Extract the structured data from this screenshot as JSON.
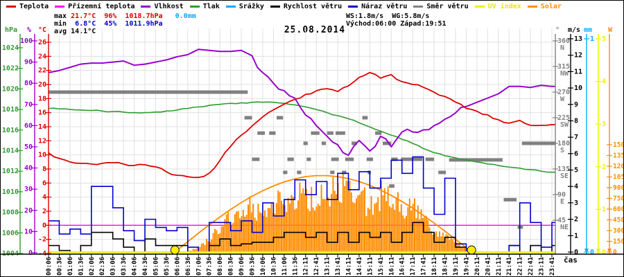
{
  "window": {
    "title": "25.08.2014"
  },
  "legend": {
    "items": [
      {
        "label": "Teplota",
        "color": "#dd0000",
        "label_color": "#000000"
      },
      {
        "label": "Přízemní teplota",
        "color": "#ff00ff",
        "label_color": "#000000"
      },
      {
        "label": "Vlhkost",
        "color": "#9900cc",
        "label_color": "#000000"
      },
      {
        "label": "Tlak",
        "color": "#2e9b2e",
        "label_color": "#000000"
      },
      {
        "label": "Srážky",
        "color": "#00aaff",
        "label_color": "#000000"
      },
      {
        "label": "Rychlost větru",
        "color": "#000000",
        "label_color": "#000000"
      },
      {
        "label": "Náraz větru",
        "color": "#0000cc",
        "label_color": "#000000"
      },
      {
        "label": "Směr větru",
        "color": "#808080",
        "label_color": "#000000"
      },
      {
        "label": "UV index",
        "color": "#f0f000",
        "label_color": "#e8e800"
      },
      {
        "label": "Solar",
        "color": "#ff8c00",
        "label_color": "#ff8c00"
      }
    ]
  },
  "stats": {
    "left_rows": [
      [
        {
          "text": "max ",
          "color": "#000000"
        },
        {
          "text": "21.7°C",
          "color": "#dd0000"
        },
        {
          "text": "  ",
          "color": "#000000"
        },
        {
          "text": "96%",
          "color": "#dd0000"
        },
        {
          "text": "  ",
          "color": "#000000"
        },
        {
          "text": "1018.7hPa",
          "color": "#dd0000"
        },
        {
          "text": "   ",
          "color": "#000000"
        },
        {
          "text": "0.0mm",
          "color": "#00aaff"
        }
      ],
      [
        {
          "text": "min ",
          "color": "#000000"
        },
        {
          "text": " 6.8°C",
          "color": "#0000cc"
        },
        {
          "text": "  ",
          "color": "#000000"
        },
        {
          "text": "45%",
          "color": "#0000cc"
        },
        {
          "text": "  ",
          "color": "#000000"
        },
        {
          "text": "1011.9hPa",
          "color": "#0000cc"
        }
      ],
      [
        {
          "text": "avg ",
          "color": "#000000"
        },
        {
          "text": "14.1°C",
          "color": "#000000"
        }
      ]
    ],
    "right_rows": [
      [
        {
          "text": "WS:1.8m/s  WG:5.8m/s",
          "color": "#000000"
        }
      ],
      [
        {
          "text": "Východ:06:00 Západ:19:51",
          "color": "#000000"
        }
      ]
    ]
  },
  "sun": {
    "sunrise": "06:00",
    "sunset": "19:51"
  },
  "axes": {
    "temp": {
      "unit": "°C",
      "color": "#dd0000",
      "min": -4,
      "max": 26,
      "ticks": [
        26,
        24,
        22,
        20,
        18,
        16,
        14,
        12,
        10,
        8,
        6,
        4,
        2,
        0,
        -2,
        -4
      ]
    },
    "humidity": {
      "unit": "%",
      "color": "#9900cc",
      "min": 0,
      "max": 100,
      "ticks": [
        100,
        90,
        80,
        70,
        60,
        50,
        40,
        30,
        20,
        10,
        0
      ]
    },
    "pressure": {
      "unit": "hPa",
      "color": "#2e9b2e",
      "min": 1004,
      "max": 1024,
      "ticks": [
        1024,
        1022,
        1020,
        1018,
        1016,
        1014,
        1012,
        1010,
        1008,
        1006,
        1004
      ]
    },
    "direction": {
      "unit": "°",
      "color": "#808080",
      "min": 0,
      "max": 360,
      "ticks": [
        [
          360,
          "N"
        ],
        [
          315,
          "NW"
        ],
        [
          270,
          "W"
        ],
        [
          225,
          "SW"
        ],
        [
          180,
          "S"
        ],
        [
          135,
          "SE"
        ],
        [
          90,
          "E"
        ],
        [
          45,
          "NE"
        ]
      ]
    },
    "wind": {
      "unit": "m/s",
      "color": "#000000",
      "min": 0,
      "max": 13,
      "ticks": [
        13,
        12,
        11,
        10,
        9,
        8,
        7,
        6,
        5,
        4,
        3,
        2,
        1,
        0
      ]
    },
    "precip": {
      "unit": "mm",
      "color": "#00aaff",
      "min": 0,
      "max": 1,
      "ticks": [
        1,
        0
      ]
    },
    "uv": {
      "unit": "",
      "color": "#f0f000",
      "min": 0,
      "max": 5,
      "ticks": [
        5,
        4,
        3,
        2,
        1,
        0
      ]
    },
    "solar": {
      "unit": "W",
      "color": "#ff8c00",
      "min": 0,
      "max": 1500,
      "ticks": [
        1500,
        1350,
        1200,
        1050,
        900,
        750,
        600,
        450,
        300,
        150,
        0
      ]
    }
  },
  "x_axis": {
    "label": "čas",
    "times": [
      "00:06",
      "00:36",
      "01:06",
      "01:36",
      "02:06",
      "02:36",
      "03:06",
      "03:36",
      "04:06",
      "04:36",
      "05:06",
      "05:36",
      "06:06",
      "06:36",
      "07:06",
      "07:36",
      "08:06",
      "08:36",
      "09:06",
      "09:36",
      "10:06",
      "10:36",
      "11:06",
      "11:36",
      "12:11",
      "12:41",
      "13:11",
      "13:41",
      "14:11",
      "14:41",
      "15:11",
      "15:41",
      "16:11",
      "16:41",
      "17:11",
      "17:41",
      "18:11",
      "18:41",
      "19:11",
      "19:41",
      "20:11",
      "20:41",
      "21:11",
      "21:41",
      "22:11",
      "22:41",
      "23:11",
      "23:41"
    ]
  },
  "chart_data": {
    "type": "line",
    "title": "25.08.2014",
    "grid": true,
    "series": [
      {
        "name": "Teplota",
        "axis": "temp",
        "color": "#dd0000",
        "style": "line",
        "values": [
          10.3,
          9.5,
          9.0,
          8.8,
          8.7,
          8.8,
          8.9,
          8.7,
          8.5,
          8.6,
          8.3,
          7.6,
          7.1,
          6.9,
          6.8,
          7.4,
          9.2,
          11.2,
          12.8,
          14.1,
          15.4,
          16.4,
          17.2,
          17.9,
          18.6,
          19.1,
          19.4,
          19.0,
          19.8,
          21.0,
          21.7,
          20.9,
          21.4,
          20.4,
          20.0,
          19.6,
          18.9,
          18.3,
          17.5,
          16.6,
          16.2,
          15.7,
          15.0,
          14.5,
          14.9,
          14.2,
          14.2,
          14.3
        ]
      },
      {
        "name": "Přízemní teplota",
        "axis": "temp",
        "color": "#ff00ff",
        "style": "line",
        "values": [
          0,
          0,
          0,
          0,
          0,
          0,
          0,
          0,
          0,
          0,
          0,
          0,
          0,
          0,
          0,
          0,
          0,
          0,
          0,
          0,
          0,
          0,
          0,
          0,
          0,
          0,
          0,
          0,
          0,
          0,
          0,
          0,
          0,
          0,
          0,
          0,
          0,
          0,
          0,
          0,
          0,
          0,
          0,
          0,
          0,
          0,
          0,
          0
        ]
      },
      {
        "name": "Vlhkost",
        "axis": "humidity",
        "color": "#9900cc",
        "style": "line",
        "values": [
          85,
          86,
          87.5,
          89,
          89.5,
          89.5,
          90,
          90.5,
          88.5,
          89,
          90,
          91,
          92.5,
          93.5,
          96,
          95.5,
          95,
          95,
          95.5,
          93,
          85,
          80,
          76.5,
          73,
          65,
          60,
          55,
          51,
          46,
          53,
          48,
          55,
          50,
          57,
          57,
          58,
          60,
          63,
          66,
          69,
          71,
          73,
          75,
          78.5,
          78.5,
          78,
          79,
          78.5
        ]
      },
      {
        "name": "Tlak",
        "axis": "pressure",
        "color": "#2e9b2e",
        "style": "line",
        "values": [
          1018.1,
          1018.05,
          1018.0,
          1017.95,
          1017.9,
          1017.85,
          1017.8,
          1017.75,
          1017.7,
          1017.7,
          1017.75,
          1017.85,
          1017.95,
          1018.1,
          1018.25,
          1018.4,
          1018.5,
          1018.6,
          1018.65,
          1018.7,
          1018.7,
          1018.7,
          1018.6,
          1018.45,
          1018.25,
          1018.0,
          1017.7,
          1017.4,
          1017.1,
          1016.7,
          1016.3,
          1015.9,
          1015.5,
          1015.1,
          1014.7,
          1014.2,
          1013.8,
          1013.5,
          1013.3,
          1013.1,
          1012.9,
          1012.7,
          1012.55,
          1012.4,
          1012.3,
          1012.15,
          1012.0,
          1011.9
        ]
      },
      {
        "name": "Srážky",
        "axis": "precip",
        "color": "#00aaff",
        "style": "line",
        "values": [
          0,
          0,
          0,
          0,
          0,
          0,
          0,
          0,
          0,
          0,
          0,
          0,
          0,
          0,
          0,
          0,
          0,
          0,
          0,
          0,
          0,
          0,
          0,
          0,
          0,
          0,
          0,
          0,
          0,
          0,
          0,
          0,
          0,
          0,
          0,
          0,
          0,
          0,
          0,
          0,
          0,
          0,
          0,
          0,
          0,
          0,
          0,
          0
        ]
      },
      {
        "name": "Rychlost větru",
        "axis": "wind",
        "color": "#000000",
        "style": "step",
        "values": [
          0.4,
          0.1,
          0,
          0.4,
          1.2,
          1.2,
          0.8,
          0.3,
          0,
          0.8,
          0.4,
          0.4,
          0.4,
          0,
          0,
          0.4,
          0.8,
          0.4,
          0.5,
          0.6,
          0.6,
          0.9,
          1.2,
          1.2,
          0.9,
          1.2,
          0.6,
          1.2,
          0.6,
          1.2,
          0.9,
          1.2,
          0.6,
          1.2,
          1.8,
          1.2,
          0.6,
          0.9,
          0.3,
          0,
          0,
          0,
          0,
          0.4,
          0,
          0.4,
          0,
          0.4
        ]
      },
      {
        "name": "Náraz větru",
        "axis": "wind",
        "color": "#0000cc",
        "style": "step",
        "values": [
          1.9,
          1.1,
          1.4,
          1.1,
          4.0,
          4.0,
          2.7,
          1.3,
          0.7,
          2.0,
          1.5,
          1.3,
          1.5,
          0.3,
          0,
          1.8,
          1.8,
          1.3,
          1.9,
          1.2,
          3.0,
          2.2,
          3.2,
          4.4,
          3.5,
          4.3,
          3.2,
          4.8,
          3.8,
          4.9,
          3.9,
          4.5,
          5.6,
          4.8,
          5.8,
          3.9,
          2.3,
          4.5,
          0.5,
          0,
          0,
          0,
          0,
          0.4,
          3.0,
          1.8,
          0.3,
          1.8
        ]
      },
      {
        "name": "UV index",
        "axis": "uv",
        "color": "#f0f000",
        "style": "line",
        "values": [
          0,
          0,
          0,
          0,
          0,
          0,
          0,
          0,
          0,
          0,
          0,
          0,
          0,
          0,
          0,
          0,
          0,
          0,
          0,
          0,
          0,
          0,
          0,
          0,
          0,
          0,
          0,
          0,
          0,
          0,
          0,
          0,
          0,
          0,
          0,
          0,
          0,
          0,
          0,
          0,
          0,
          0,
          0,
          0,
          0,
          0,
          0,
          0
        ]
      },
      {
        "name": "Solar",
        "axis": "solar",
        "color": "#ff8c00",
        "style": "fill",
        "values": [
          0,
          0,
          0,
          0,
          0,
          0,
          0,
          0,
          0,
          0,
          0,
          0,
          0,
          10,
          60,
          180,
          330,
          480,
          560,
          640,
          580,
          740,
          760,
          800,
          820,
          780,
          850,
          900,
          920,
          870,
          600,
          830,
          850,
          680,
          640,
          515,
          320,
          225,
          125,
          40,
          0,
          0,
          0,
          0,
          0,
          0,
          0,
          0
        ]
      },
      {
        "name": "Solar max",
        "axis": "solar",
        "color": "#ff8c00",
        "style": "arc",
        "values": [
          0,
          0,
          0,
          0,
          0,
          0,
          0,
          0,
          0,
          0,
          0,
          0,
          25,
          145,
          265,
          380,
          490,
          595,
          692,
          780,
          857,
          924,
          980,
          1022,
          1055,
          1068,
          1068,
          1054,
          1027,
          986,
          932,
          867,
          792,
          707,
          614,
          513,
          406,
          294,
          179,
          61,
          0,
          0,
          0,
          0,
          0,
          0,
          0,
          0
        ]
      }
    ],
    "wind_direction": {
      "color": "#808080",
      "segments": [
        {
          "i1": 0,
          "i2": 18.6,
          "deg": 270
        },
        {
          "i1": 44.2,
          "i2": 47.3,
          "deg": 180
        },
        {
          "i1": 37.4,
          "i2": 42.4,
          "deg": 151
        },
        {
          "i1": 42.5,
          "i2": 43.7,
          "deg": 81
        },
        {
          "i1": 43.8,
          "i2": 44.3,
          "deg": 33
        },
        {
          "i1": 18.3,
          "i2": 19.0,
          "deg": 225
        },
        {
          "i1": 19.5,
          "i2": 20.2,
          "deg": 198
        },
        {
          "i1": 20.6,
          "i2": 21.2,
          "deg": 198
        },
        {
          "i1": 21.3,
          "i2": 21.9,
          "deg": 225
        },
        {
          "i1": 23.8,
          "i2": 24.2,
          "deg": 180
        },
        {
          "i1": 24.5,
          "i2": 25.3,
          "deg": 198
        },
        {
          "i1": 25.5,
          "i2": 25.9,
          "deg": 180
        },
        {
          "i1": 26.0,
          "i2": 26.6,
          "deg": 198
        },
        {
          "i1": 26.8,
          "i2": 27.7,
          "deg": 198
        },
        {
          "i1": 28.3,
          "i2": 28.8,
          "deg": 180
        },
        {
          "i1": 29.3,
          "i2": 29.8,
          "deg": 225
        },
        {
          "i1": 30.5,
          "i2": 31.1,
          "deg": 198
        },
        {
          "i1": 31.2,
          "i2": 32.0,
          "deg": 180
        },
        {
          "i1": 19.0,
          "i2": 19.7,
          "deg": 152
        },
        {
          "i1": 22.3,
          "i2": 22.9,
          "deg": 152
        },
        {
          "i1": 24.1,
          "i2": 24.5,
          "deg": 152
        },
        {
          "i1": 26.4,
          "i2": 27.1,
          "deg": 152
        },
        {
          "i1": 27.7,
          "i2": 28.5,
          "deg": 152
        },
        {
          "i1": 29.7,
          "i2": 30.3,
          "deg": 152
        },
        {
          "i1": 32.0,
          "i2": 32.6,
          "deg": 152
        },
        {
          "i1": 32.9,
          "i2": 34.9,
          "deg": 152
        },
        {
          "i1": 21.9,
          "i2": 22.3,
          "deg": 129
        },
        {
          "i1": 23.2,
          "i2": 23.6,
          "deg": 129
        },
        {
          "i1": 26.3,
          "i2": 26.7,
          "deg": 129
        },
        {
          "i1": 27.4,
          "i2": 27.8,
          "deg": 129
        },
        {
          "i1": 29.8,
          "i2": 30.1,
          "deg": 129
        },
        {
          "i1": 31.8,
          "i2": 32.3,
          "deg": 105
        },
        {
          "i1": 35.2,
          "i2": 36.0,
          "deg": 152
        },
        {
          "i1": 36.4,
          "i2": 37.1,
          "deg": 129
        }
      ]
    },
    "sun_markers": {
      "color": "#ffee00",
      "sunrise_x_index": 11.8,
      "sunset_x_index": 39.5
    }
  }
}
